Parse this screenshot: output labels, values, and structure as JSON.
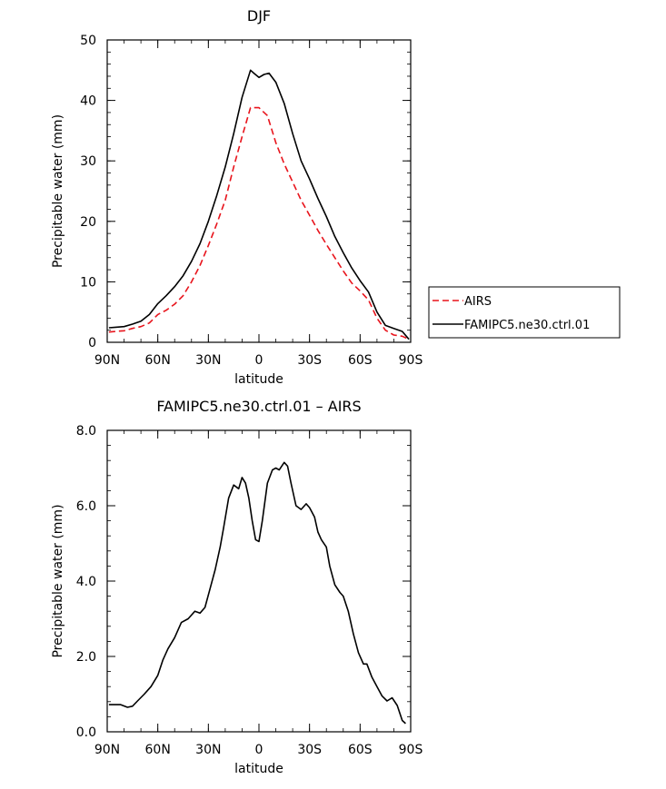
{
  "chart_data": [
    {
      "type": "line",
      "title": "DJF",
      "xlabel": "latitude",
      "ylabel": "Precipitable water (mm)",
      "xlim": [
        90,
        -90
      ],
      "ylim": [
        0,
        50
      ],
      "x_ticks": [
        90,
        60,
        30,
        0,
        -30,
        -60,
        -90
      ],
      "x_tick_labels": [
        "90N",
        "60N",
        "30N",
        "0",
        "30S",
        "60S",
        "90S"
      ],
      "y_ticks": [
        0,
        10,
        20,
        30,
        40,
        50
      ],
      "y_tick_labels": [
        "0",
        "10",
        "20",
        "30",
        "40",
        "50"
      ],
      "legend": {
        "placement": "right-outside"
      },
      "series": [
        {
          "name": "AIRS",
          "color": "#e8141c",
          "dash": "dashed",
          "x": [
            89,
            85,
            80,
            75,
            70,
            65,
            60,
            55,
            50,
            45,
            40,
            35,
            30,
            25,
            20,
            15,
            10,
            5,
            0,
            -5,
            -10,
            -15,
            -20,
            -25,
            -30,
            -35,
            -40,
            -45,
            -50,
            -55,
            -60,
            -65,
            -70,
            -75,
            -80,
            -85,
            -89
          ],
          "y": [
            1.7,
            1.8,
            1.9,
            2.3,
            2.6,
            3.2,
            4.6,
            5.3,
            6.3,
            7.7,
            10.0,
            12.7,
            16.0,
            19.6,
            23.5,
            29.0,
            34.0,
            38.8,
            38.8,
            37.5,
            33.0,
            29.5,
            26.5,
            23.5,
            21.0,
            18.5,
            16.2,
            14.0,
            11.8,
            9.8,
            8.5,
            7.0,
            4.0,
            2.0,
            1.2,
            1.0,
            0.5
          ]
        },
        {
          "name": "FAMIPC5.ne30.ctrl.01",
          "color": "#000000",
          "dash": "solid",
          "x": [
            89,
            85,
            80,
            75,
            70,
            65,
            60,
            55,
            50,
            45,
            40,
            35,
            30,
            25,
            20,
            15,
            10,
            5,
            3,
            0,
            -3,
            -6,
            -10,
            -15,
            -20,
            -25,
            -30,
            -35,
            -40,
            -45,
            -50,
            -55,
            -60,
            -65,
            -70,
            -75,
            -80,
            -85,
            -89
          ],
          "y": [
            2.4,
            2.5,
            2.6,
            3.0,
            3.5,
            4.6,
            6.4,
            7.7,
            9.2,
            11.0,
            13.4,
            16.3,
            20.0,
            24.3,
            29.0,
            34.5,
            40.5,
            45.0,
            44.5,
            43.8,
            44.3,
            44.5,
            43.0,
            39.5,
            34.5,
            30.0,
            27.0,
            23.8,
            20.8,
            17.5,
            14.8,
            12.3,
            10.2,
            8.3,
            5.0,
            2.8,
            2.3,
            1.8,
            0.5
          ]
        }
      ]
    },
    {
      "type": "line",
      "title": "FAMIPC5.ne30.ctrl.01  –  AIRS",
      "xlabel": "latitude",
      "ylabel": "Precipitable water (mm)",
      "xlim": [
        90,
        -90
      ],
      "ylim": [
        0,
        8
      ],
      "x_ticks": [
        90,
        60,
        30,
        0,
        -30,
        -60,
        -90
      ],
      "x_tick_labels": [
        "90N",
        "60N",
        "30N",
        "0",
        "30S",
        "60S",
        "90S"
      ],
      "y_ticks": [
        0,
        2,
        4,
        6,
        8
      ],
      "y_tick_labels": [
        "0.0",
        "2.0",
        "4.0",
        "6.0",
        "8.0"
      ],
      "series": [
        {
          "color": "#000000",
          "dash": "solid",
          "x": [
            89,
            86,
            82,
            78,
            75,
            72,
            68,
            64,
            60,
            57,
            54,
            50,
            46,
            42,
            38,
            35,
            32,
            29,
            26,
            23,
            21,
            18,
            15,
            12,
            10,
            8,
            6,
            4,
            2,
            0,
            -2,
            -5,
            -8,
            -10,
            -12,
            -15,
            -17,
            -19,
            -22,
            -25,
            -28,
            -30,
            -33,
            -35,
            -37,
            -40,
            -42,
            -45,
            -48,
            -50,
            -53,
            -56,
            -59,
            -62,
            -64,
            -67,
            -70,
            -73,
            -76,
            -79,
            -82,
            -85,
            -87
          ],
          "y": [
            0.72,
            0.72,
            0.72,
            0.65,
            0.68,
            0.82,
            1.0,
            1.2,
            1.5,
            1.9,
            2.2,
            2.5,
            2.9,
            3.0,
            3.2,
            3.15,
            3.3,
            3.8,
            4.3,
            4.9,
            5.4,
            6.2,
            6.55,
            6.45,
            6.75,
            6.6,
            6.2,
            5.6,
            5.1,
            5.05,
            5.6,
            6.6,
            6.95,
            7.0,
            6.95,
            7.15,
            7.05,
            6.6,
            6.0,
            5.9,
            6.05,
            5.95,
            5.7,
            5.3,
            5.1,
            4.9,
            4.4,
            3.9,
            3.7,
            3.6,
            3.2,
            2.6,
            2.1,
            1.8,
            1.8,
            1.45,
            1.2,
            0.95,
            0.82,
            0.9,
            0.7,
            0.3,
            0.22
          ]
        }
      ]
    }
  ]
}
